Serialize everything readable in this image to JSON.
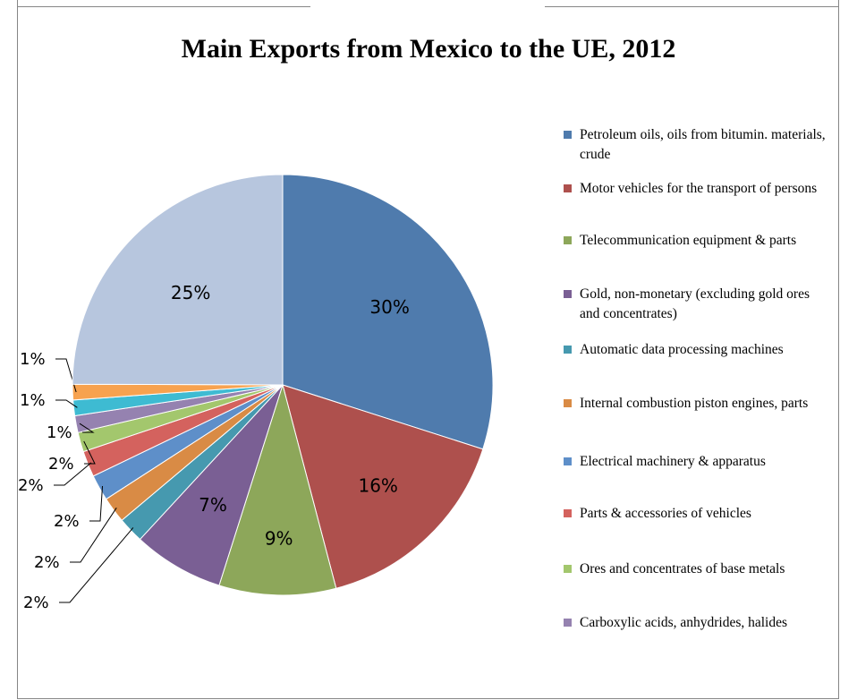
{
  "chart_data": {
    "type": "pie",
    "title": "Main Exports from Mexico to the UE, 2012",
    "slices": [
      {
        "label": "Petroleum oils, oils from bitumin. materials, crude",
        "value": 30,
        "percent_label": "30%",
        "color": "#4F7BAD"
      },
      {
        "label": "Motor vehicles for the transport of persons",
        "value": 16,
        "percent_label": "16%",
        "color": "#AE504D"
      },
      {
        "label": "Telecommunication equipment & parts",
        "value": 9,
        "percent_label": "9%",
        "color": "#8DA75A"
      },
      {
        "label": "Gold, non-monetary (excluding gold ores and concentrates)",
        "value": 7,
        "percent_label": "7%",
        "color": "#7A5F94"
      },
      {
        "label": "Automatic data processing machines",
        "value": 2,
        "percent_label": "2%",
        "color": "#4699AF"
      },
      {
        "label": "Internal combustion piston engines, parts",
        "value": 2,
        "percent_label": "2%",
        "color": "#D98B45"
      },
      {
        "label": "Electrical machinery & apparatus",
        "value": 2,
        "percent_label": "2%",
        "color": "#5E8FC9"
      },
      {
        "label": "Parts & accessories of vehicles",
        "value": 2,
        "percent_label": "2%",
        "color": "#D4625E"
      },
      {
        "label": "Ores and concentrates of base metals",
        "value": 1.5,
        "percent_label": "2%",
        "color": "#A3C76D"
      },
      {
        "label": "Carboxylic acids, anhydrides, halides",
        "value": 1.3,
        "percent_label": "1%",
        "color": "#9582B0"
      },
      {
        "label": "",
        "value": 1.2,
        "percent_label": "1%",
        "color": "#3EBBD2"
      },
      {
        "label": "",
        "value": 1.2,
        "percent_label": "1%",
        "color": "#F7A24F"
      },
      {
        "label": "",
        "value": 25,
        "percent_label": "25%",
        "color": "#B7C6DE"
      }
    ],
    "legend_position": "right"
  }
}
